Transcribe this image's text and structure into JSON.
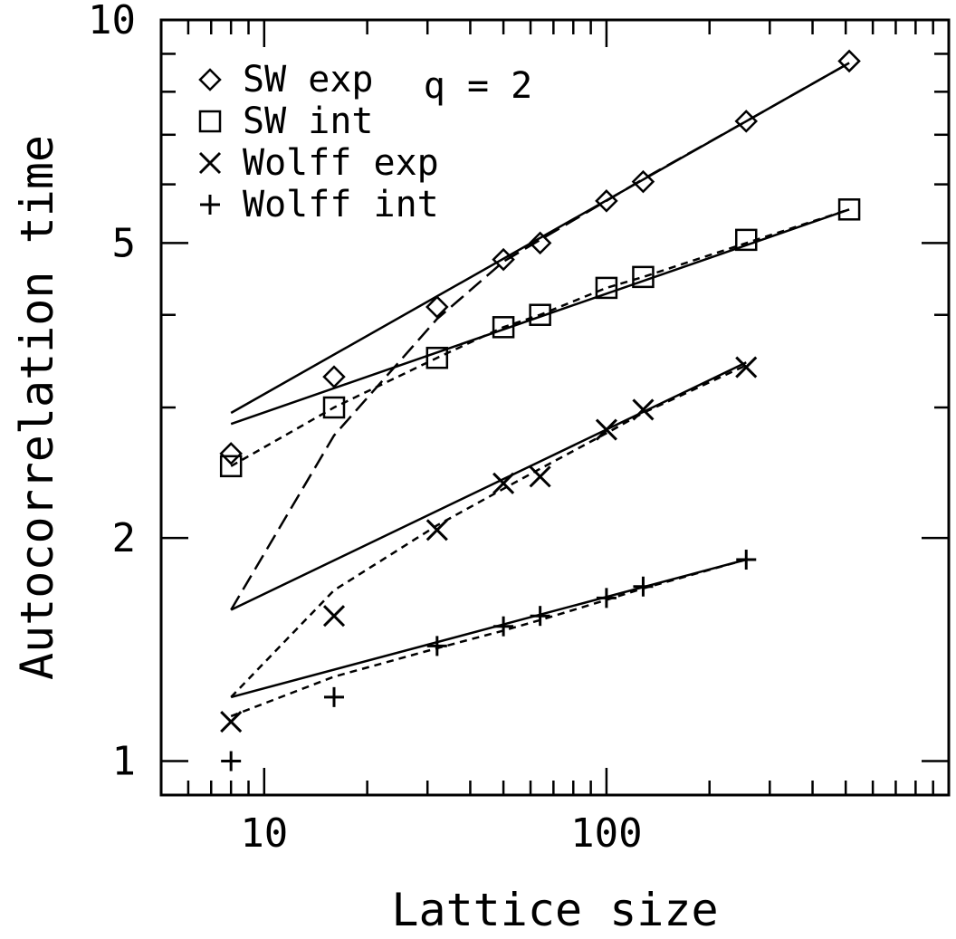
{
  "chart_data": {
    "type": "scatter",
    "title": "",
    "xlabel": "Lattice size",
    "ylabel": "Autocorrelation time",
    "x_scale": "log",
    "y_scale": "log",
    "xlim": [
      5,
      1000
    ],
    "ylim": [
      0.9,
      10
    ],
    "x_ticks": [
      10,
      100
    ],
    "x_tick_labels": [
      "10",
      "100"
    ],
    "y_ticks": [
      1,
      2,
      5,
      10
    ],
    "y_tick_labels": [
      "1",
      "2",
      "5",
      "10"
    ],
    "grid": false,
    "legend_position": "top-left",
    "annotation": "q = 2",
    "series": [
      {
        "name": "SW exp",
        "marker": "diamond",
        "x": [
          8,
          16,
          32,
          50,
          64,
          100,
          128,
          256,
          512
        ],
        "y": [
          2.6,
          3.3,
          4.1,
          4.75,
          5.0,
          5.7,
          6.05,
          7.3,
          8.8
        ],
        "fit_solid": {
          "x": [
            8,
            512
          ],
          "y": [
            2.95,
            8.75
          ]
        },
        "fit_dashed": {
          "x": [
            8,
            16,
            32,
            50,
            64,
            100,
            128,
            256,
            512
          ],
          "y": [
            1.6,
            2.75,
            3.95,
            4.72,
            5.05,
            5.7,
            6.1,
            7.3,
            8.75
          ]
        }
      },
      {
        "name": "SW int",
        "marker": "square",
        "x": [
          8,
          16,
          32,
          50,
          64,
          100,
          128,
          256,
          512
        ],
        "y": [
          2.5,
          3.0,
          3.5,
          3.85,
          4.0,
          4.35,
          4.5,
          5.05,
          5.55
        ],
        "fit_solid": {
          "x": [
            8,
            512
          ],
          "y": [
            2.85,
            5.55
          ]
        },
        "fit_dashed": {
          "x": [
            8,
            16,
            32,
            50,
            64,
            100,
            128,
            256,
            512
          ],
          "y": [
            2.5,
            3.0,
            3.5,
            3.85,
            4.0,
            4.35,
            4.5,
            5.0,
            5.55
          ]
        }
      },
      {
        "name": "Wolff exp",
        "marker": "cross",
        "x": [
          8,
          16,
          32,
          50,
          64,
          100,
          128,
          256
        ],
        "y": [
          1.13,
          1.57,
          2.05,
          2.37,
          2.42,
          2.8,
          2.98,
          3.4
        ],
        "fit_solid": {
          "x": [
            8,
            256
          ],
          "y": [
            1.6,
            3.45
          ]
        },
        "fit_dashed": {
          "x": [
            8,
            16,
            32,
            50,
            64,
            100,
            128,
            256
          ],
          "y": [
            1.22,
            1.7,
            2.08,
            2.33,
            2.48,
            2.77,
            2.95,
            3.42
          ]
        }
      },
      {
        "name": "Wolff int",
        "marker": "plus",
        "x": [
          8,
          16,
          32,
          50,
          64,
          100,
          128,
          256
        ],
        "y": [
          1.0,
          1.22,
          1.43,
          1.52,
          1.57,
          1.66,
          1.72,
          1.87
        ],
        "fit_solid": {
          "x": [
            8,
            256
          ],
          "y": [
            1.22,
            1.87
          ]
        },
        "fit_dashed": {
          "x": [
            8,
            16,
            32,
            50,
            64,
            100,
            128,
            256
          ],
          "y": [
            1.15,
            1.3,
            1.42,
            1.5,
            1.55,
            1.65,
            1.71,
            1.87
          ]
        }
      }
    ]
  }
}
